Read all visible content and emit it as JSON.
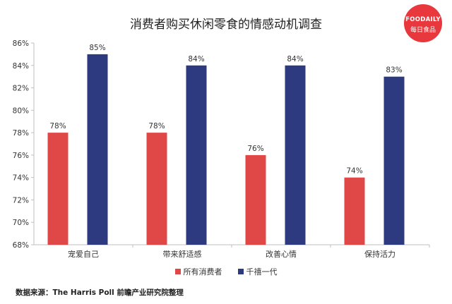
{
  "title": "消费者购买休闲零食的情感动机调查",
  "logo": {
    "brand_en": "FOODAILY",
    "brand_cn": "每日食品"
  },
  "source": "数据来源：The Harris Poll 前瞻产业研究院整理",
  "colors": {
    "all_consumers": "#e04848",
    "millennials": "#2e3a80",
    "axis": "#bfbfbf",
    "text": "#333333"
  },
  "chart_data": {
    "type": "bar",
    "title": "消费者购买休闲零食的情感动机调查",
    "xlabel": "",
    "ylabel": "",
    "categories": [
      "宠爱自己",
      "带来舒适感",
      "改善心情",
      "保持活力"
    ],
    "series": [
      {
        "name": "所有消费者",
        "values": [
          78,
          78,
          76,
          74
        ],
        "color": "#e04848"
      },
      {
        "name": "千禧一代",
        "values": [
          85,
          84,
          84,
          83
        ],
        "color": "#2e3a80"
      }
    ],
    "ylim": [
      68,
      86
    ],
    "yticks": [
      68,
      70,
      72,
      74,
      76,
      78,
      80,
      82,
      84,
      86
    ],
    "tick_suffix": "%",
    "label_suffix": "%",
    "grid": false,
    "legend_position": "bottom"
  }
}
